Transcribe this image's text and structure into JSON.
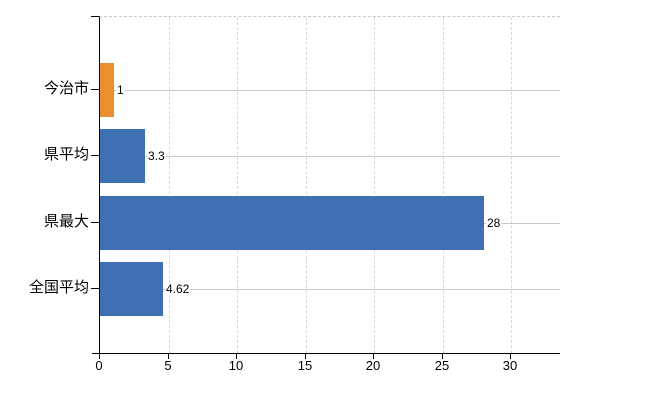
{
  "chart_data": {
    "type": "bar",
    "orientation": "horizontal",
    "title": "",
    "xlabel": "",
    "ylabel": "",
    "categories": [
      "今治市",
      "県平均",
      "県最大",
      "全国平均"
    ],
    "values": [
      1,
      3.3,
      28,
      4.62
    ],
    "value_labels": [
      "1",
      "3.3",
      "28",
      "4.62"
    ],
    "series": [
      {
        "name": "values",
        "values": [
          1,
          3.3,
          28,
          4.62
        ],
        "colors": [
          "#ea8e30",
          "#3f70b3",
          "#3f70b3",
          "#3f70b3"
        ]
      }
    ],
    "x_ticks": [
      0,
      5,
      10,
      15,
      20,
      25,
      30
    ],
    "x_tick_labels": [
      "0",
      "5",
      "10",
      "15",
      "20",
      "25",
      "30"
    ],
    "xlim": [
      0,
      33.6
    ],
    "grid": true,
    "legend": false
  },
  "colors": {
    "highlight_bar": "#ea8e30",
    "default_bar": "#3f70b3",
    "axis": "#000000",
    "vertical_gridline": "#d8d8d8",
    "horizontal_gridline": "#c8cdc8",
    "plot_top_border": "#c9c9c9",
    "background": "#ffffff",
    "text": "#000000"
  }
}
